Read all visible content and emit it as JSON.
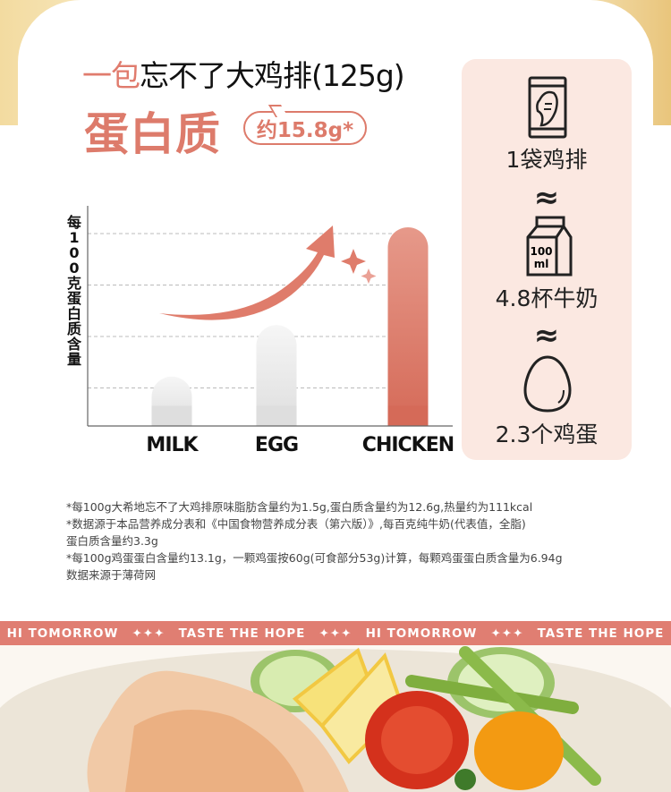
{
  "header": {
    "title_highlight": "一包",
    "title_rest": "忘不了大鸡排(125g)",
    "protein_label": "蛋白质",
    "protein_badge": "约15.8g*"
  },
  "comparison": {
    "items": [
      {
        "label": "1袋鸡排",
        "icon": "chicken-bag-icon"
      },
      {
        "label": "4.8杯牛奶",
        "icon": "milk-carton-icon",
        "icon_text": "100 ml"
      },
      {
        "label": "2.3个鸡蛋",
        "icon": "egg-icon"
      }
    ],
    "approx_symbol": "≈"
  },
  "chart_data": {
    "type": "bar",
    "ylabel": "每100克蛋白质含量",
    "categories": [
      "MILK",
      "EGG",
      "CHICKEN"
    ],
    "values": [
      0.96,
      1.96,
      3.86
    ],
    "ylim": [
      0,
      4
    ],
    "grid": true,
    "colors": [
      "#e3e3e3",
      "#e3e3e3",
      "#de7b6a"
    ]
  },
  "notes": [
    "*每100g大希地忘不了大鸡排原味脂肪含量约为1.5g,蛋白质含量约为12.6g,热量约为111kcal",
    "*数据源于本品营养成分表和《中国食物营养成分表（第六版）》,每百克纯牛奶(代表值，全脂)",
    "蛋白质含量约3.3g",
    "*每100g鸡蛋蛋白含量约13.1g，一颗鸡蛋按60g(可食部分53g)计算，每颗鸡蛋蛋白质含量为6.94g",
    "数据来源于薄荷网"
  ],
  "banner": [
    "HI TOMORROW",
    "✦✦✦",
    "TASTE THE HOPE",
    "✦✦✦",
    "HI TOMORROW",
    "✦✦✦",
    "TASTE THE HOPE"
  ],
  "colors": {
    "accent": "#dd7b6b",
    "panel": "#fbe8e1",
    "banner": "#e07e72"
  }
}
